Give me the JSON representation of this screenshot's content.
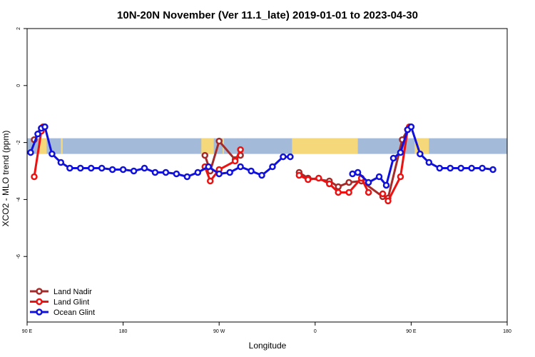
{
  "chart_data": {
    "type": "line",
    "title": "10N-20N November (Ver 11.1_late)   2019-01-01 to 2023-04-30",
    "xlabel": "Longitude",
    "ylabel": "XCO2 - MLO trend (ppm)",
    "xlim": [
      -90,
      180
    ],
    "ylim": [
      -8.3,
      2
    ],
    "x_ticks": [
      {
        "value": -90,
        "label": "90 E"
      },
      {
        "value": -36,
        "label": "180"
      },
      {
        "value": 18,
        "label": "90 W"
      },
      {
        "value": 72,
        "label": "0"
      },
      {
        "value": 126,
        "label": "90 E"
      },
      {
        "value": 180,
        "label": "180"
      }
    ],
    "y_ticks": [
      {
        "value": 2,
        "label": "2"
      },
      {
        "value": 0,
        "label": "0"
      },
      {
        "value": -2,
        "label": "-2"
      },
      {
        "value": -4,
        "label": "-4"
      },
      {
        "value": -6,
        "label": "-6"
      }
    ],
    "map_band": {
      "y_top": -1.85,
      "y_bottom": -2.4,
      "ocean_color": "#a3bbd9",
      "land_color": "#f5d87a"
    },
    "land_segments": [
      [
        -83,
        -79
      ],
      [
        -71,
        -70
      ],
      [
        8,
        15
      ],
      [
        20,
        20.7
      ],
      [
        59,
        96
      ],
      [
        134,
        135.5
      ],
      [
        128,
        136
      ]
    ],
    "legend_position": "bottom-left",
    "series": [
      {
        "name": "Land Nadir",
        "color": "#a52a2a",
        "segments": [
          [
            [
              -86,
              -1.9
            ],
            [
              -82,
              -1.5
            ]
          ],
          [
            [
              10,
              -2.45
            ],
            [
              13,
              -3.0
            ],
            [
              18,
              -1.95
            ],
            [
              27,
              -2.6
            ],
            [
              30,
              -2.45
            ]
          ],
          [
            [
              63,
              -3.05
            ],
            [
              68,
              -3.25
            ],
            [
              80,
              -3.35
            ],
            [
              85,
              -3.55
            ],
            [
              91,
              -3.4
            ],
            [
              98,
              -3.35
            ],
            [
              110,
              -3.9
            ],
            [
              113,
              -3.95
            ],
            [
              121,
              -1.9
            ],
            [
              124,
              -1.55
            ]
          ]
        ]
      },
      {
        "name": "Land Glint",
        "color": "#ee1111",
        "segments": [
          [
            [
              -86,
              -3.2
            ],
            [
              -82,
              -1.6
            ],
            [
              -81,
              -1.45
            ]
          ],
          [
            [
              10,
              -2.85
            ],
            [
              13,
              -3.35
            ],
            [
              18,
              -2.95
            ],
            [
              27,
              -2.65
            ],
            [
              30,
              -2.25
            ]
          ],
          [
            [
              63,
              -3.15
            ],
            [
              68,
              -3.3
            ],
            [
              74,
              -3.25
            ],
            [
              80,
              -3.45
            ],
            [
              85,
              -3.75
            ],
            [
              91,
              -3.75
            ],
            [
              98,
              -3.25
            ],
            [
              102,
              -3.75
            ]
          ],
          [
            [
              110,
              -3.8
            ],
            [
              113,
              -4.05
            ],
            [
              120,
              -3.2
            ],
            [
              124,
              -1.55
            ],
            [
              125,
              -1.45
            ]
          ]
        ]
      },
      {
        "name": "Ocean Glint",
        "color": "#1111dd",
        "segments": [
          [
            [
              -88,
              -2.35
            ],
            [
              -84,
              -1.7
            ],
            [
              -82,
              -1.5
            ],
            [
              -80,
              -1.45
            ],
            [
              -76,
              -2.4
            ],
            [
              -71,
              -2.7
            ],
            [
              -66,
              -2.9
            ],
            [
              -60,
              -2.9
            ],
            [
              -54,
              -2.9
            ],
            [
              -48,
              -2.9
            ],
            [
              -42,
              -2.95
            ],
            [
              -36,
              -2.95
            ],
            [
              -30,
              -3.0
            ],
            [
              -24,
              -2.9
            ],
            [
              -18,
              -3.05
            ],
            [
              -12,
              -3.05
            ],
            [
              -6,
              -3.1
            ],
            [
              0,
              -3.2
            ],
            [
              6,
              -3.05
            ],
            [
              12,
              -2.85
            ],
            [
              18,
              -3.1
            ],
            [
              24,
              -3.05
            ],
            [
              30,
              -2.85
            ],
            [
              36,
              -3.0
            ],
            [
              42,
              -3.15
            ],
            [
              48,
              -2.85
            ],
            [
              54,
              -2.5
            ],
            [
              58,
              -2.5
            ]
          ],
          [
            [
              93,
              -3.1
            ],
            [
              96,
              -3.05
            ],
            [
              102,
              -3.4
            ],
            [
              108,
              -3.2
            ],
            [
              112,
              -3.5
            ],
            [
              116,
              -2.55
            ],
            [
              120,
              -2.35
            ],
            [
              124,
              -1.55
            ],
            [
              126,
              -1.45
            ],
            [
              131,
              -2.4
            ],
            [
              136,
              -2.7
            ],
            [
              142,
              -2.9
            ],
            [
              148,
              -2.9
            ],
            [
              154,
              -2.9
            ],
            [
              160,
              -2.9
            ],
            [
              166,
              -2.9
            ],
            [
              172,
              -2.95
            ]
          ]
        ]
      }
    ]
  }
}
